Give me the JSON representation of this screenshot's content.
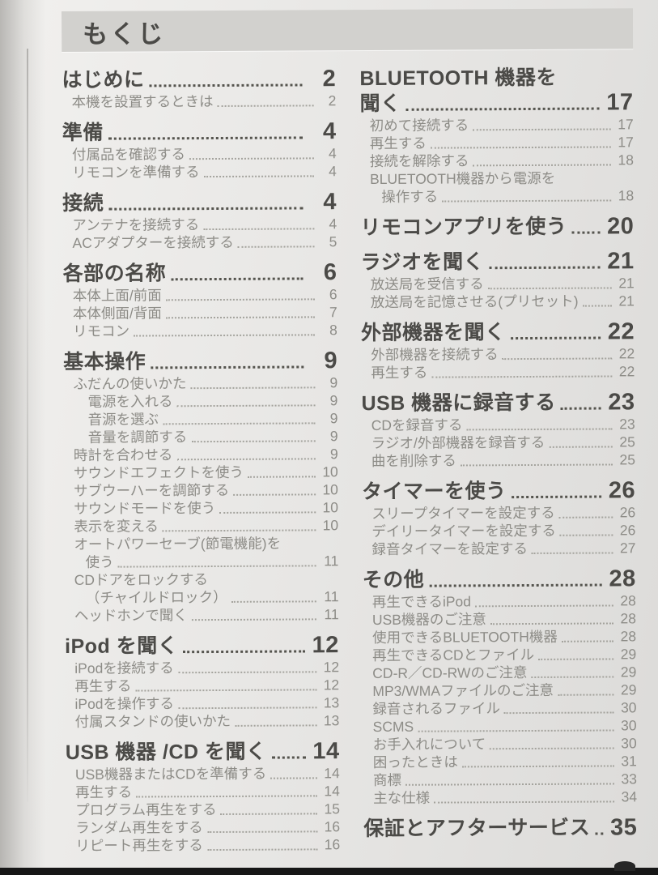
{
  "header": {
    "title": "もくじ"
  },
  "colors": {
    "page_bg": "#e8e7e4",
    "title_band_bg": "#d2d1ce",
    "heading_text": "#4b4a47",
    "sub_text": "#8d8c87",
    "photo_edge": "#161616"
  },
  "toc": {
    "left_column": [
      {
        "title": "はじめに",
        "page": "2",
        "items": [
          {
            "text": "本機を設置するときは",
            "page": "2",
            "indent": 1
          }
        ]
      },
      {
        "title": "準備",
        "page": "4",
        "items": [
          {
            "text": "付属品を確認する",
            "page": "4",
            "indent": 1
          },
          {
            "text": "リモコンを準備する",
            "page": "4",
            "indent": 1
          }
        ]
      },
      {
        "title": "接続",
        "page": "4",
        "items": [
          {
            "text": "アンテナを接続する",
            "page": "4",
            "indent": 1
          },
          {
            "text": "ACアダプターを接続する",
            "page": "5",
            "indent": 1
          }
        ]
      },
      {
        "title": "各部の名称",
        "page": "6",
        "items": [
          {
            "text": "本体上面/前面",
            "page": "6",
            "indent": 1
          },
          {
            "text": "本体側面/背面",
            "page": "7",
            "indent": 1
          },
          {
            "text": "リモコン",
            "page": "8",
            "indent": 1
          }
        ]
      },
      {
        "title": "基本操作",
        "page": "9",
        "items": [
          {
            "text": "ふだんの使いかた",
            "page": "9",
            "indent": 1
          },
          {
            "text": "電源を入れる",
            "page": "9",
            "indent": 2
          },
          {
            "text": "音源を選ぶ",
            "page": "9",
            "indent": 2
          },
          {
            "text": "音量を調節する",
            "page": "9",
            "indent": 2
          },
          {
            "text": "時計を合わせる",
            "page": "9",
            "indent": 1
          },
          {
            "text": "サウンドエフェクトを使う",
            "page": "10",
            "indent": 1
          },
          {
            "text": "サブウーハーを調節する",
            "page": "10",
            "indent": 1
          },
          {
            "text": "サウンドモードを使う",
            "page": "10",
            "indent": 1
          },
          {
            "text": "表示を変える",
            "page": "10",
            "indent": 1
          },
          {
            "pre": "オートパワーセーブ(節電機能)を",
            "text": "使う",
            "page": "11",
            "indent": 1
          },
          {
            "pre": "CDドアをロックする",
            "text": "（チャイルドロック）",
            "page": "11",
            "indent": 1
          },
          {
            "text": "ヘッドホンで聞く",
            "page": "11",
            "indent": 1
          }
        ]
      },
      {
        "title": "iPod を聞く",
        "page": "12",
        "items": [
          {
            "text": "iPodを接続する",
            "page": "12",
            "indent": 1
          },
          {
            "text": "再生する",
            "page": "12",
            "indent": 1
          },
          {
            "text": "iPodを操作する",
            "page": "13",
            "indent": 1
          },
          {
            "text": "付属スタンドの使いかた",
            "page": "13",
            "indent": 1
          }
        ]
      },
      {
        "title": "USB 機器 /CD を聞く",
        "page": "14",
        "items": [
          {
            "text": "USB機器またはCDを準備する",
            "page": "14",
            "indent": 1
          },
          {
            "text": "再生する",
            "page": "14",
            "indent": 1
          },
          {
            "text": "プログラム再生をする",
            "page": "15",
            "indent": 1
          },
          {
            "text": "ランダム再生をする",
            "page": "16",
            "indent": 1
          },
          {
            "text": "リピート再生をする",
            "page": "16",
            "indent": 1
          }
        ]
      }
    ],
    "right_column": [
      {
        "pre": "BLUETOOTH 機器を",
        "title": "聞く",
        "page": "17",
        "items": [
          {
            "text": "初めて接続する",
            "page": "17",
            "indent": 1
          },
          {
            "text": "再生する",
            "page": "17",
            "indent": 1
          },
          {
            "text": "接続を解除する",
            "page": "18",
            "indent": 1
          },
          {
            "pre": "BLUETOOTH機器から電源を",
            "text": "操作する",
            "page": "18",
            "indent": 1
          }
        ]
      },
      {
        "title": "リモコンアプリを使う",
        "page": "20",
        "items": []
      },
      {
        "title": "ラジオを聞く",
        "page": "21",
        "items": [
          {
            "text": "放送局を受信する",
            "page": "21",
            "indent": 1
          },
          {
            "text": "放送局を記憶させる(プリセット)",
            "page": "21",
            "indent": 1
          }
        ]
      },
      {
        "title": "外部機器を聞く",
        "page": "22",
        "items": [
          {
            "text": "外部機器を接続する",
            "page": "22",
            "indent": 1
          },
          {
            "text": "再生する",
            "page": "22",
            "indent": 1
          }
        ]
      },
      {
        "title": "USB 機器に録音する",
        "page": "23",
        "items": [
          {
            "text": "CDを録音する",
            "page": "23",
            "indent": 1
          },
          {
            "text": "ラジオ/外部機器を録音する",
            "page": "25",
            "indent": 1
          },
          {
            "text": "曲を削除する",
            "page": "25",
            "indent": 1
          }
        ]
      },
      {
        "title": "タイマーを使う",
        "page": "26",
        "items": [
          {
            "text": "スリープタイマーを設定する",
            "page": "26",
            "indent": 1
          },
          {
            "text": "デイリータイマーを設定する",
            "page": "26",
            "indent": 1
          },
          {
            "text": "録音タイマーを設定する",
            "page": "27",
            "indent": 1
          }
        ]
      },
      {
        "title": "その他",
        "page": "28",
        "items": [
          {
            "text": "再生できるiPod",
            "page": "28",
            "indent": 1
          },
          {
            "text": "USB機器のご注意",
            "page": "28",
            "indent": 1
          },
          {
            "text": "使用できるBLUETOOTH機器",
            "page": "28",
            "indent": 1
          },
          {
            "text": "再生できるCDとファイル",
            "page": "29",
            "indent": 1
          },
          {
            "text": "CD-R／CD-RWのご注意",
            "page": "29",
            "indent": 1
          },
          {
            "text": "MP3/WMAファイルのご注意",
            "page": "29",
            "indent": 1
          },
          {
            "text": "録音されるファイル",
            "page": "30",
            "indent": 1
          },
          {
            "text": "SCMS",
            "page": "30",
            "indent": 1
          },
          {
            "text": "お手入れについて",
            "page": "30",
            "indent": 1
          },
          {
            "text": "困ったときは",
            "page": "31",
            "indent": 1
          },
          {
            "text": "商標",
            "page": "33",
            "indent": 1
          },
          {
            "text": "主な仕様",
            "page": "34",
            "indent": 1
          }
        ]
      },
      {
        "title": "保証とアフターサービス",
        "page": "35",
        "items": []
      }
    ]
  }
}
